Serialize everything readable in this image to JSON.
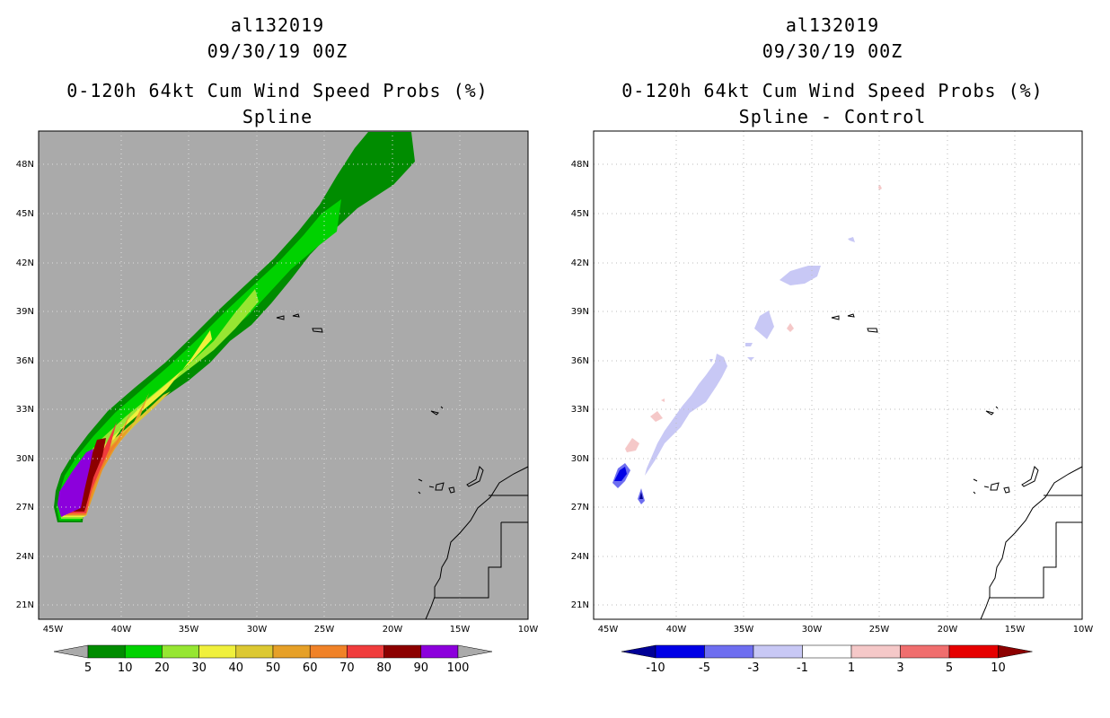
{
  "left_panel": {
    "storm_id": "al132019",
    "datetime": "09/30/19 00Z",
    "product": "0-120h 64kt Cum Wind Speed Probs (%)",
    "method": "Spline",
    "lat_labels": [
      "48N",
      "45N",
      "42N",
      "39N",
      "36N",
      "33N",
      "30N",
      "27N",
      "24N",
      "21N"
    ],
    "lon_labels": [
      "45W",
      "40W",
      "35W",
      "30W",
      "25W",
      "20W",
      "15W",
      "10W"
    ],
    "colorbar": {
      "labels": [
        "5",
        "10",
        "20",
        "30",
        "40",
        "50",
        "60",
        "70",
        "80",
        "90",
        "100"
      ],
      "colors": [
        "#008c00",
        "#00d200",
        "#96e632",
        "#f0f03c",
        "#dcc832",
        "#e6a028",
        "#f08228",
        "#f03c3c",
        "#8c0000",
        "#8c00dc"
      ],
      "under_color": "#aaaaaa",
      "over_color": "#aaaaaa"
    }
  },
  "right_panel": {
    "storm_id": "al132019",
    "datetime": "09/30/19 00Z",
    "product": "0-120h 64kt Cum Wind Speed Probs (%)",
    "method": "Spline - Control",
    "lat_labels": [
      "48N",
      "45N",
      "42N",
      "39N",
      "36N",
      "33N",
      "30N",
      "27N",
      "24N",
      "21N"
    ],
    "lon_labels": [
      "45W",
      "40W",
      "35W",
      "30W",
      "25W",
      "20W",
      "15W",
      "10W"
    ],
    "colorbar": {
      "labels": [
        "-10",
        "-5",
        "-3",
        "-1",
        "1",
        "3",
        "5",
        "10"
      ],
      "colors": [
        "#0000e6",
        "#6e6ef0",
        "#c8c8f5",
        "#ffffff",
        "#f5c8c8",
        "#f06e6e",
        "#e60000"
      ],
      "under_color": "#000096",
      "over_color": "#8c0000"
    }
  }
}
